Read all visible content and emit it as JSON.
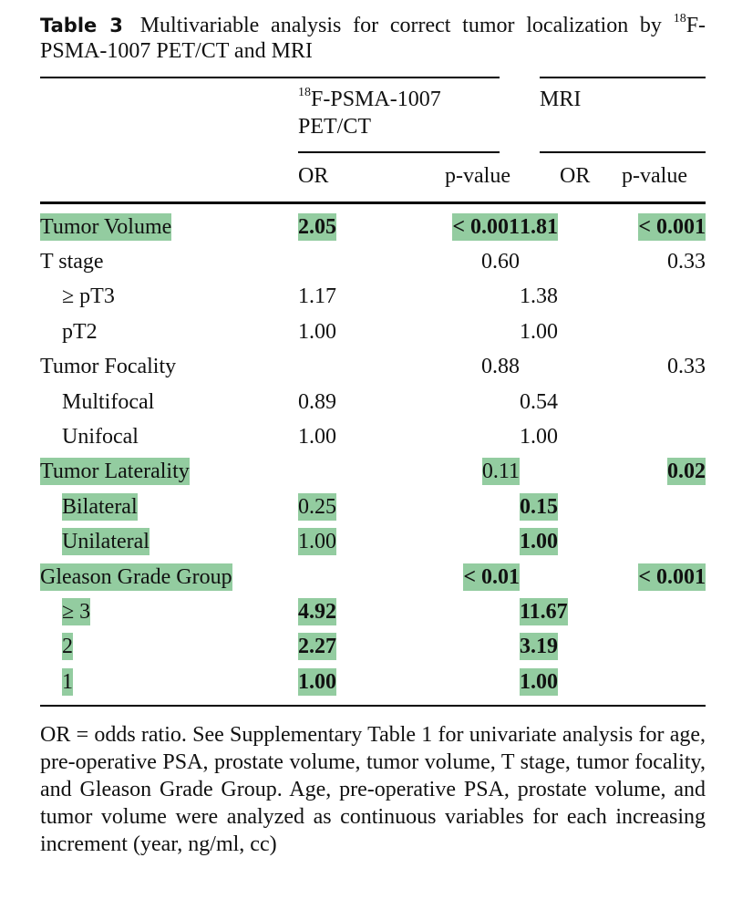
{
  "caption": {
    "label": "Table 3",
    "text_1": "Multivariable analysis for correct tumor localization by",
    "superscript": "18",
    "text_2": "F-PSMA-1007 PET/CT and MRI"
  },
  "header": {
    "group1_sup": "18",
    "group1_line1": "F-PSMA-1007",
    "group1_line2": "PET/CT",
    "group2": "MRI",
    "or_label": "OR",
    "p_label": "p-value"
  },
  "rows": [
    {
      "label": "Tumor Volume",
      "indent": false,
      "label_hl": true,
      "pet_or": "2.05",
      "pet_or_hl": true,
      "pet_or_bold": true,
      "pet_p": "< 0.001",
      "pet_p_hl": true,
      "pet_p_bold": true,
      "mri_or": "1.81",
      "mri_or_hl": true,
      "mri_or_bold": true,
      "mri_p": "< 0.001",
      "mri_p_hl": true,
      "mri_p_bold": true
    },
    {
      "label": "T stage",
      "indent": false,
      "label_hl": false,
      "pet_or": "",
      "pet_p": "0.60",
      "mri_or": "",
      "mri_p": "0.33"
    },
    {
      "label": "≥ pT3",
      "indent": true,
      "label_hl": false,
      "pet_or": "1.17",
      "pet_p": "",
      "mri_or": "1.38",
      "mri_p": ""
    },
    {
      "label": "pT2",
      "indent": true,
      "label_hl": false,
      "pet_or": "1.00",
      "pet_p": "",
      "mri_or": "1.00",
      "mri_p": ""
    },
    {
      "label": "Tumor Focality",
      "indent": false,
      "label_hl": false,
      "pet_or": "",
      "pet_p": "0.88",
      "mri_or": "",
      "mri_p": "0.33"
    },
    {
      "label": "Multifocal",
      "indent": true,
      "label_hl": false,
      "pet_or": "0.89",
      "pet_p": "",
      "mri_or": "0.54",
      "mri_p": ""
    },
    {
      "label": "Unifocal",
      "indent": true,
      "label_hl": false,
      "pet_or": "1.00",
      "pet_p": "",
      "mri_or": "1.00",
      "mri_p": ""
    },
    {
      "label": "Tumor Laterality",
      "indent": false,
      "label_hl": true,
      "pet_or": "",
      "pet_p": "0.11",
      "pet_p_hl": true,
      "mri_or": "",
      "mri_p": "0.02",
      "mri_p_hl": true,
      "mri_p_bold": true
    },
    {
      "label": "Bilateral",
      "indent": true,
      "label_hl": true,
      "pet_or": "0.25",
      "pet_or_hl": true,
      "pet_p": "",
      "mri_or": "0.15",
      "mri_or_hl": true,
      "mri_or_bold": true,
      "mri_p": ""
    },
    {
      "label": "Unilateral",
      "indent": true,
      "label_hl": true,
      "pet_or": "1.00",
      "pet_or_hl": true,
      "pet_p": "",
      "mri_or": "1.00",
      "mri_or_hl": true,
      "mri_or_bold": true,
      "mri_p": ""
    },
    {
      "label": "Gleason Grade Group",
      "indent": false,
      "label_hl": true,
      "pet_or": "",
      "pet_p": "< 0.01",
      "pet_p_hl": true,
      "pet_p_bold": true,
      "mri_or": "",
      "mri_p": "< 0.001",
      "mri_p_hl": true,
      "mri_p_bold": true
    },
    {
      "label": "≥ 3",
      "indent": true,
      "label_hl": true,
      "pet_or": "4.92",
      "pet_or_hl": true,
      "pet_or_bold": true,
      "pet_p": "",
      "mri_or": "11.67",
      "mri_or_hl": true,
      "mri_or_bold": true,
      "mri_p": ""
    },
    {
      "label": "2",
      "indent": true,
      "label_hl": true,
      "pet_or": "2.27",
      "pet_or_hl": true,
      "pet_or_bold": true,
      "pet_p": "",
      "mri_or": "3.19",
      "mri_or_hl": true,
      "mri_or_bold": true,
      "mri_p": ""
    },
    {
      "label": "1",
      "indent": true,
      "label_hl": true,
      "pet_or": "1.00",
      "pet_or_hl": true,
      "pet_or_bold": true,
      "pet_p": "",
      "mri_or": "1.00",
      "mri_or_hl": true,
      "mri_or_bold": true,
      "mri_p": ""
    }
  ],
  "footnote": "OR = odds ratio. See Supplementary Table 1 for univariate analysis for age, pre-operative PSA, prostate volume, tumor volume, T stage, tumor focality, and Gleason Grade Group. Age, pre-operative PSA, prostate volume, and tumor volume were analyzed as continuous variables for each increasing increment (year, ng/ml, cc)",
  "colors": {
    "highlight": "#93cca0",
    "text": "#111111",
    "rule": "#000000"
  }
}
